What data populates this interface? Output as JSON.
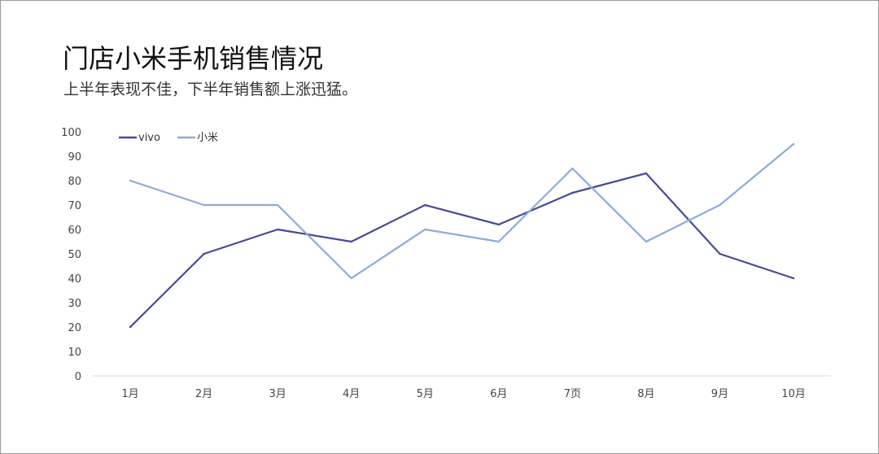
{
  "chart_data": {
    "type": "line",
    "title": "门店小米手机销售情况",
    "subtitle": "上半年表现不佳，下半年销售额上涨迅猛。",
    "categories": [
      "1月",
      "2月",
      "3月",
      "4月",
      "5月",
      "6月",
      "7页",
      "8月",
      "9月",
      "10月"
    ],
    "yticks": [
      "0",
      "10",
      "20",
      "30",
      "40",
      "50",
      "60",
      "70",
      "80",
      "90",
      "100"
    ],
    "ylim": [
      0,
      100
    ],
    "grid": false,
    "legend_position": "top-left",
    "series": [
      {
        "name": "vivo",
        "color": "#474a9a",
        "values": [
          20,
          50,
          60,
          55,
          70,
          62,
          75,
          83,
          50,
          40
        ]
      },
      {
        "name": "小米",
        "color": "#8eaadb",
        "values": [
          80,
          70,
          70,
          40,
          60,
          55,
          85,
          55,
          70,
          95
        ]
      }
    ]
  }
}
